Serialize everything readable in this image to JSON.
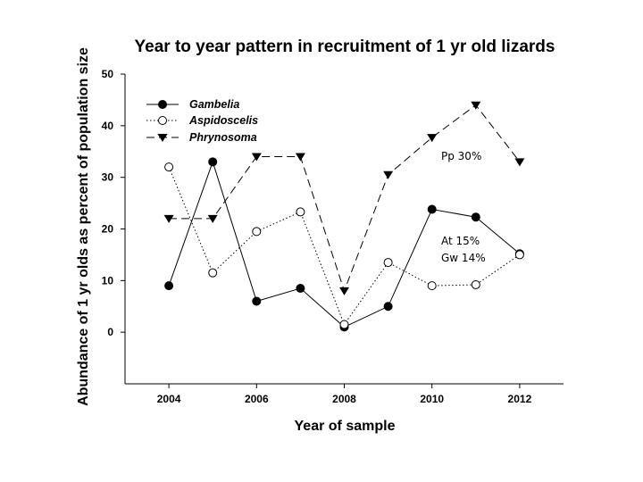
{
  "chart_data": {
    "type": "line",
    "title": "Year to year pattern in recruitment of 1 yr old lizards",
    "xlabel": "Year of sample",
    "ylabel": "Abundance of 1 yr olds as percent of population size",
    "xlim": [
      2003,
      2013
    ],
    "ylim": [
      -10,
      50
    ],
    "x_ticks": [
      "2004",
      "2006",
      "2008",
      "2010",
      "2012"
    ],
    "y_ticks": [
      "0",
      "10",
      "20",
      "30",
      "40",
      "50"
    ],
    "x": [
      2004,
      2005,
      2006,
      2007,
      2008,
      2009,
      2010,
      2011,
      2012
    ],
    "legend_position": "top-left",
    "series": [
      {
        "name": "Gambelia",
        "marker": "filled-circle",
        "line": "solid",
        "values": [
          9,
          33,
          6,
          8.5,
          1,
          5,
          23.8,
          22.3,
          15.2
        ]
      },
      {
        "name": "Aspidoscelis",
        "marker": "open-circle",
        "line": "dotted",
        "values": [
          32,
          11.5,
          19.5,
          23.3,
          1.5,
          13.5,
          9,
          9.2,
          15
        ]
      },
      {
        "name": "Phrynosoma",
        "marker": "filled-triangle-down",
        "line": "dashed",
        "values": [
          22,
          22,
          34,
          34,
          8,
          30.5,
          37.7,
          44,
          33
        ]
      }
    ],
    "annotations": [
      "Pp  30%",
      "At   15%",
      "Gw 14%"
    ]
  }
}
